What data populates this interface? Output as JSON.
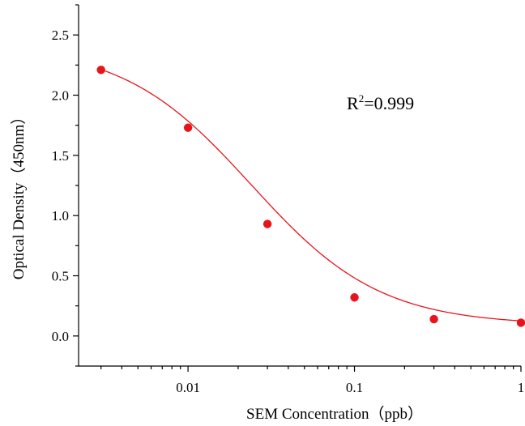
{
  "chart_data": {
    "type": "scatter",
    "xscale": "log",
    "xlabel": "SEM Concentration（ppb）",
    "ylabel": "Optical Density（450nm）",
    "xlim": [
      0.0022,
      1
    ],
    "ylim": [
      -0.25,
      2.75
    ],
    "xticks": [
      0.01,
      0.1,
      1
    ],
    "xtick_labels": [
      "0.01",
      "0.1",
      "1"
    ],
    "yticks": [
      0.0,
      0.5,
      1.0,
      1.5,
      2.0,
      2.5
    ],
    "ytick_labels": [
      "0.0",
      "0.5",
      "1.0",
      "1.5",
      "2.0",
      "2.5"
    ],
    "series": [
      {
        "x": [
          0.003,
          0.01,
          0.03,
          0.1,
          0.3,
          1
        ],
        "y": [
          2.21,
          1.73,
          0.93,
          0.32,
          0.14,
          0.11
        ]
      }
    ],
    "fit": {
      "model": "four-parameter logistic",
      "top": 2.42,
      "bottom": 0.09,
      "ec50": 0.024,
      "hill": 1.12
    },
    "colors": {
      "series": "#e8141b",
      "axis": "#000000"
    },
    "annotation": {
      "base": "R",
      "sup": "2",
      "rest": "=0.999"
    },
    "grid": false,
    "legend": "none"
  }
}
